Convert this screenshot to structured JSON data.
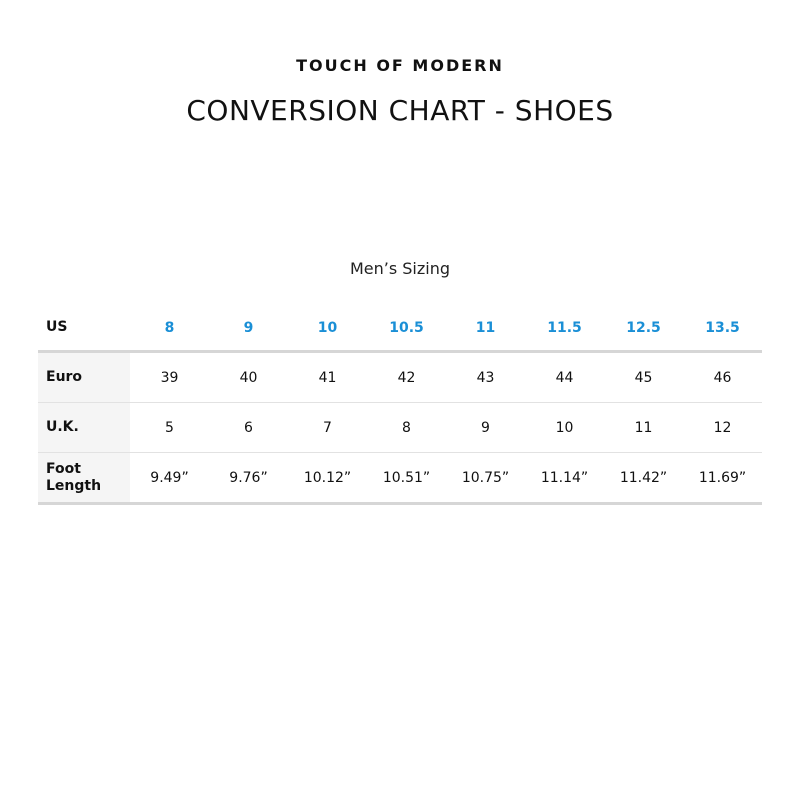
{
  "brand": "TOUCH OF MODERN",
  "title": "CONVERSION CHART - SHOES",
  "subtitle": "Men’s Sizing",
  "accent_color": "#1a8fd6",
  "table": {
    "header": {
      "label": "US",
      "values": [
        "8",
        "9",
        "10",
        "10.5",
        "11",
        "11.5",
        "12.5",
        "13.5"
      ]
    },
    "rows": [
      {
        "label": "Euro",
        "values": [
          "39",
          "40",
          "41",
          "42",
          "43",
          "44",
          "45",
          "46"
        ]
      },
      {
        "label": "U.K.",
        "values": [
          "5",
          "6",
          "7",
          "8",
          "9",
          "10",
          "11",
          "12"
        ]
      },
      {
        "label": "Foot Length",
        "values": [
          "9.49”",
          "9.76”",
          "10.12”",
          "10.51”",
          "10.75”",
          "11.14”",
          "11.42”",
          "11.69”"
        ]
      }
    ]
  }
}
